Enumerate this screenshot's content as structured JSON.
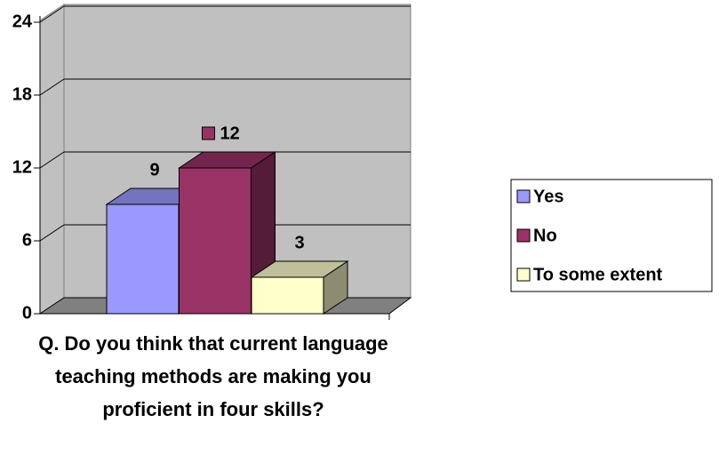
{
  "chart_data": {
    "type": "bar",
    "categories": [
      "Q.  Do you think that current language teaching methods are making you proficient in four skills?"
    ],
    "series": [
      {
        "name": "Yes",
        "color": "#9999ff",
        "values": [
          9
        ]
      },
      {
        "name": "No",
        "color": "#993366",
        "values": [
          12
        ]
      },
      {
        "name": "To some extent",
        "color": "#ffffcc",
        "values": [
          3
        ]
      }
    ],
    "ylim": [
      0,
      24
    ],
    "yticks": [
      0,
      6,
      12,
      18,
      24
    ],
    "grid": true,
    "legend": "right"
  }
}
